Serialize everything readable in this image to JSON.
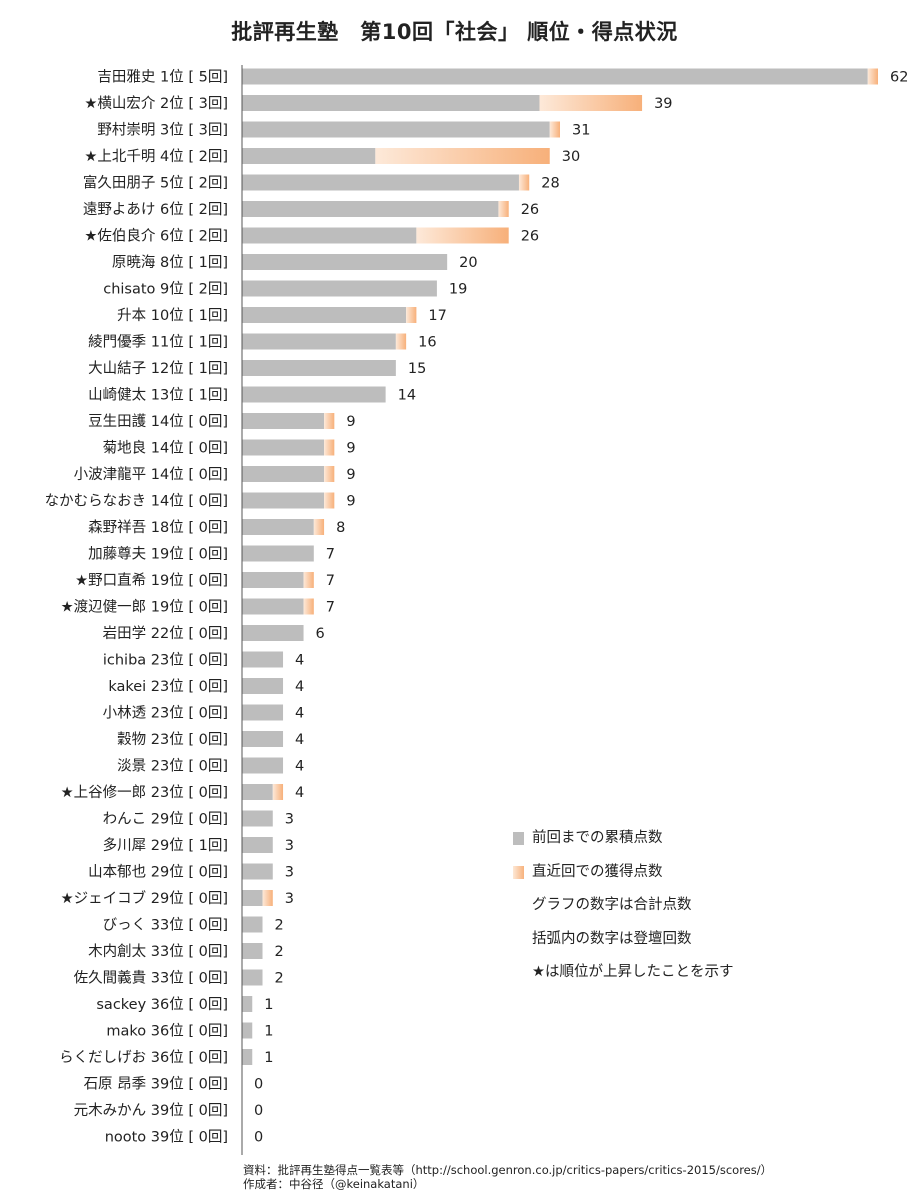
{
  "title": "批評再生塾　第10回「社会」 順位・得点状況",
  "chart_data": {
    "type": "bar",
    "orientation": "horizontal",
    "stacked": true,
    "xlim": [
      0,
      62
    ],
    "categories": [
      "吉田雅史 1位 [ 5回]",
      "★横山宏介 2位 [ 3回]",
      "野村崇明 3位 [ 3回]",
      "★上北千明 4位 [ 2回]",
      "富久田朋子 5位 [ 2回]",
      "遠野よあけ 6位 [ 2回]",
      "★佐伯良介 6位 [ 2回]",
      "原暁海 8位 [ 1回]",
      "chisato 9位 [ 2回]",
      "升本 10位 [ 1回]",
      "綾門優季 11位 [ 1回]",
      "大山結子 12位 [ 1回]",
      "山崎健太 13位 [ 1回]",
      "豆生田護 14位 [ 0回]",
      "菊地良 14位 [ 0回]",
      "小波津龍平 14位 [ 0回]",
      "なかむらなおき 14位 [ 0回]",
      "森野祥吾 18位 [ 0回]",
      "加藤尊夫 19位 [ 0回]",
      "★野口直希 19位 [ 0回]",
      "★渡辺健一郎 19位 [ 0回]",
      "岩田学 22位 [ 0回]",
      "ichiba 23位 [ 0回]",
      "kakei 23位 [ 0回]",
      "小林透 23位 [ 0回]",
      "穀物 23位 [ 0回]",
      "淡景 23位 [ 0回]",
      "★上谷修一郎 23位 [ 0回]",
      "わんこ 29位 [ 0回]",
      "多川犀 29位 [ 1回]",
      "山本郁也 29位 [ 0回]",
      "★ジェイコブ 29位 [ 0回]",
      "びっく 33位 [ 0回]",
      "木内創太 33位 [ 0回]",
      "佐久間義貴 33位 [ 0回]",
      "sackey 36位 [ 0回]",
      "mako 36位 [ 0回]",
      "らくだしげお 36位 [ 0回]",
      "石原 昂季 39位 [ 0回]",
      "元木みかん 39位 [ 0回]",
      "nooto 39位 [ 0回]"
    ],
    "series": [
      {
        "name": "前回までの累積点数",
        "color": "#bdbdbd",
        "values": [
          61,
          29,
          30,
          13,
          27,
          25,
          17,
          20,
          19,
          16,
          15,
          15,
          14,
          8,
          8,
          8,
          8,
          7,
          7,
          6,
          6,
          6,
          4,
          4,
          4,
          4,
          4,
          3,
          3,
          3,
          3,
          2,
          2,
          2,
          2,
          1,
          1,
          1,
          0,
          0,
          0
        ]
      },
      {
        "name": "直近回での獲得点数",
        "color": "#f7b27d",
        "values": [
          1,
          10,
          1,
          17,
          1,
          1,
          9,
          0,
          0,
          1,
          1,
          0,
          0,
          1,
          1,
          1,
          1,
          1,
          0,
          1,
          1,
          0,
          0,
          0,
          0,
          0,
          0,
          1,
          0,
          0,
          0,
          1,
          0,
          0,
          0,
          0,
          0,
          0,
          0,
          0,
          0
        ]
      }
    ],
    "totals": [
      62,
      39,
      31,
      30,
      28,
      26,
      26,
      20,
      19,
      17,
      16,
      15,
      14,
      9,
      9,
      9,
      9,
      8,
      7,
      7,
      7,
      6,
      4,
      4,
      4,
      4,
      4,
      4,
      3,
      3,
      3,
      3,
      2,
      2,
      2,
      1,
      1,
      1,
      0,
      0,
      0
    ]
  },
  "legend": {
    "cumulative_label": "前回までの累積点数",
    "recent_label": "直近回での獲得点数",
    "note_total": "グラフの数字は合計点数",
    "note_bracket": "括弧内の数字は登壇回数",
    "note_star": "★は順位が上昇したことを示す"
  },
  "footer": {
    "source": "資料：批評再生塾得点一覧表等（http://school.genron.co.jp/critics-papers/critics-2015/scores/）",
    "author": "作成者：中谷径（@keinakatani）"
  }
}
